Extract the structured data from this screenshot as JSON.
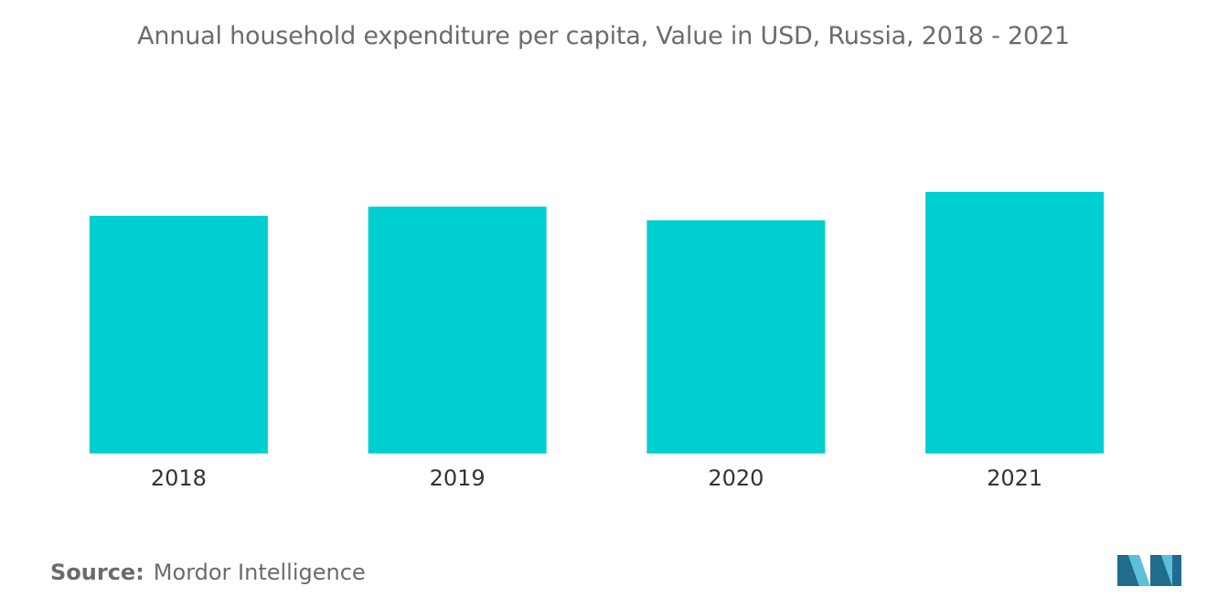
{
  "title": "Annual household expenditure per capita, Value in USD, Russia, 2018 - 2021",
  "source": {
    "label": "Source:",
    "value": "Mordor Intelligence"
  },
  "logo": {
    "icon": "mordor-intelligence-logo-icon",
    "colors": [
      "#1f6c8f",
      "#5cc1d8"
    ]
  },
  "colors": {
    "bar": "#00cfd1",
    "title": "#6b6b6b",
    "tick": "#333333"
  },
  "chart_data": {
    "type": "bar",
    "title": "Annual household expenditure per capita, Value in USD, Russia, 2018 - 2021",
    "categories": [
      "2018",
      "2019",
      "2020",
      "2021"
    ],
    "values": [
      260,
      270,
      255,
      286
    ],
    "xlabel": "",
    "ylabel": "",
    "ylim": [
      0,
      400
    ],
    "grid": false,
    "legend": "none"
  }
}
